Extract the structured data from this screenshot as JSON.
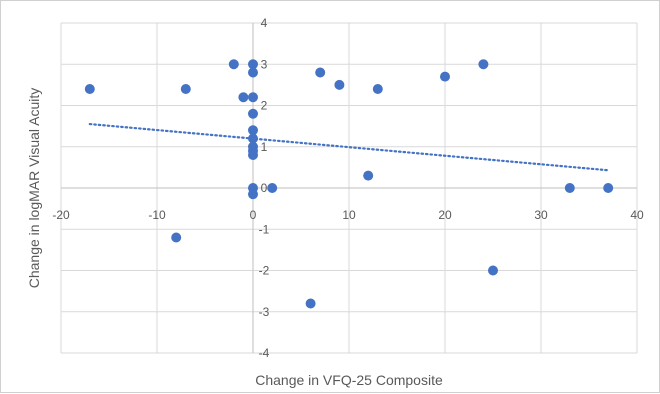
{
  "chart_data": {
    "type": "scatter",
    "title": "",
    "xlabel": "Change in VFQ-25 Composite",
    "ylabel": "Change in logMAR Visual Acuity",
    "xlim": [
      -20,
      40
    ],
    "ylim": [
      -4,
      4
    ],
    "x_ticks": [
      -20,
      -10,
      0,
      10,
      20,
      30,
      40
    ],
    "y_ticks": [
      -4,
      -3,
      -2,
      -1,
      0,
      1,
      2,
      3,
      4
    ],
    "x_tick_labels": [
      "-20",
      "-10",
      "0",
      "10",
      "20",
      "30",
      "40"
    ],
    "y_tick_labels": [
      "-4",
      "-3",
      "-2",
      "-1",
      "0",
      "1",
      "2",
      "3",
      "4"
    ],
    "grid": "vertical and horizontal major gridlines",
    "legend": "none",
    "marker_color": "#4472c4",
    "trendline": {
      "type": "linear",
      "style": "dotted",
      "color": "#4472c4",
      "x": [
        -17,
        37
      ],
      "y": [
        1.55,
        0.43
      ]
    },
    "points": [
      {
        "x": -17,
        "y": 2.4
      },
      {
        "x": -7,
        "y": 2.4
      },
      {
        "x": -8,
        "y": -1.2
      },
      {
        "x": -2,
        "y": 3.0
      },
      {
        "x": -1,
        "y": 2.2
      },
      {
        "x": 0,
        "y": 3.0
      },
      {
        "x": 0,
        "y": 2.8
      },
      {
        "x": 0,
        "y": 2.2
      },
      {
        "x": 0,
        "y": 1.8
      },
      {
        "x": 0,
        "y": 1.4
      },
      {
        "x": 0,
        "y": 1.2
      },
      {
        "x": 0,
        "y": 1.0
      },
      {
        "x": 0,
        "y": 0.9
      },
      {
        "x": 0,
        "y": 0.8
      },
      {
        "x": 0,
        "y": 0.0
      },
      {
        "x": 0,
        "y": -0.15
      },
      {
        "x": 2,
        "y": 0.0
      },
      {
        "x": 6,
        "y": -2.8
      },
      {
        "x": 7,
        "y": 2.8
      },
      {
        "x": 9,
        "y": 2.5
      },
      {
        "x": 12,
        "y": 0.3
      },
      {
        "x": 13,
        "y": 2.4
      },
      {
        "x": 20,
        "y": 2.7
      },
      {
        "x": 24,
        "y": 3.0
      },
      {
        "x": 25,
        "y": -2.0
      },
      {
        "x": 33,
        "y": 0.0
      },
      {
        "x": 37,
        "y": 0.0
      }
    ]
  }
}
